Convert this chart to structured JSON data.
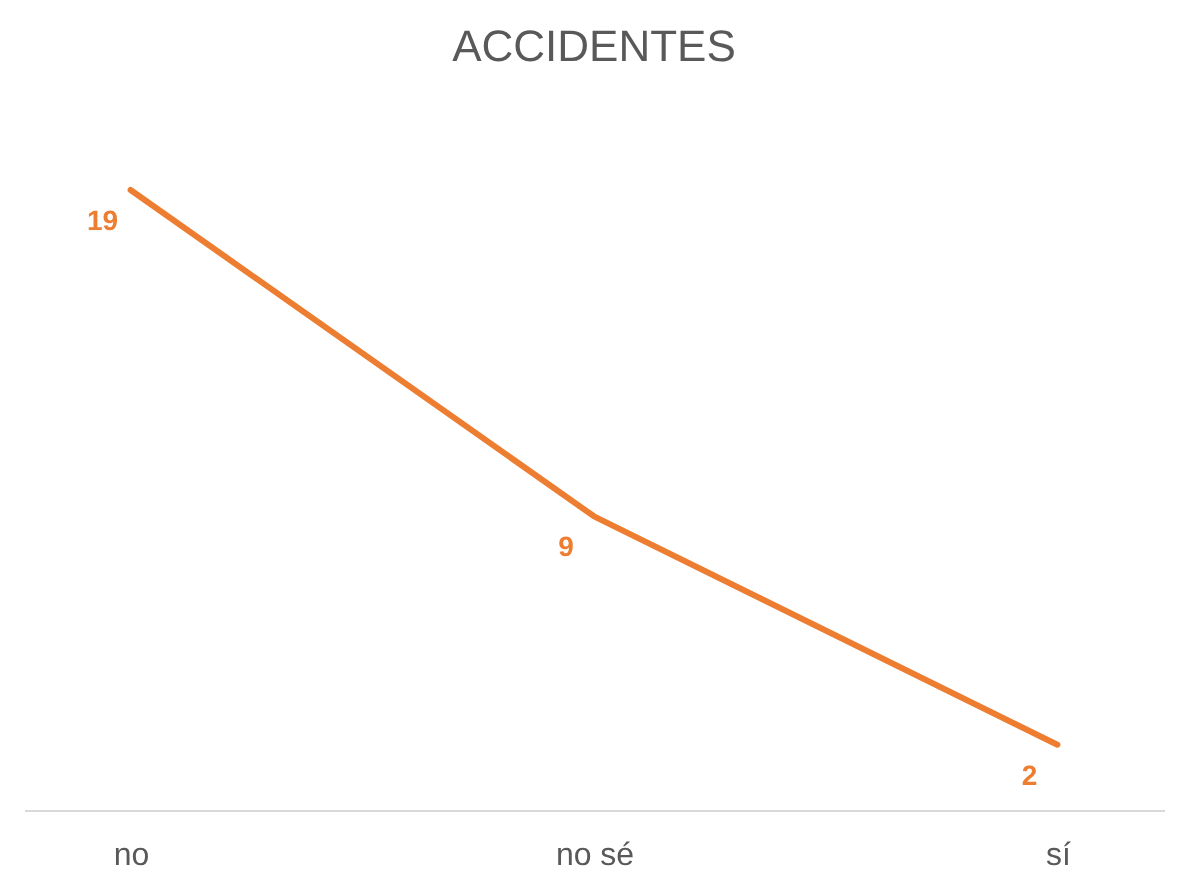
{
  "chart_data": {
    "type": "line",
    "title": "ACCIDENTES",
    "categories": [
      "no",
      "no sé",
      "sí"
    ],
    "values": [
      19,
      9,
      2
    ],
    "color": "#ed7d31",
    "data_labels": true
  }
}
